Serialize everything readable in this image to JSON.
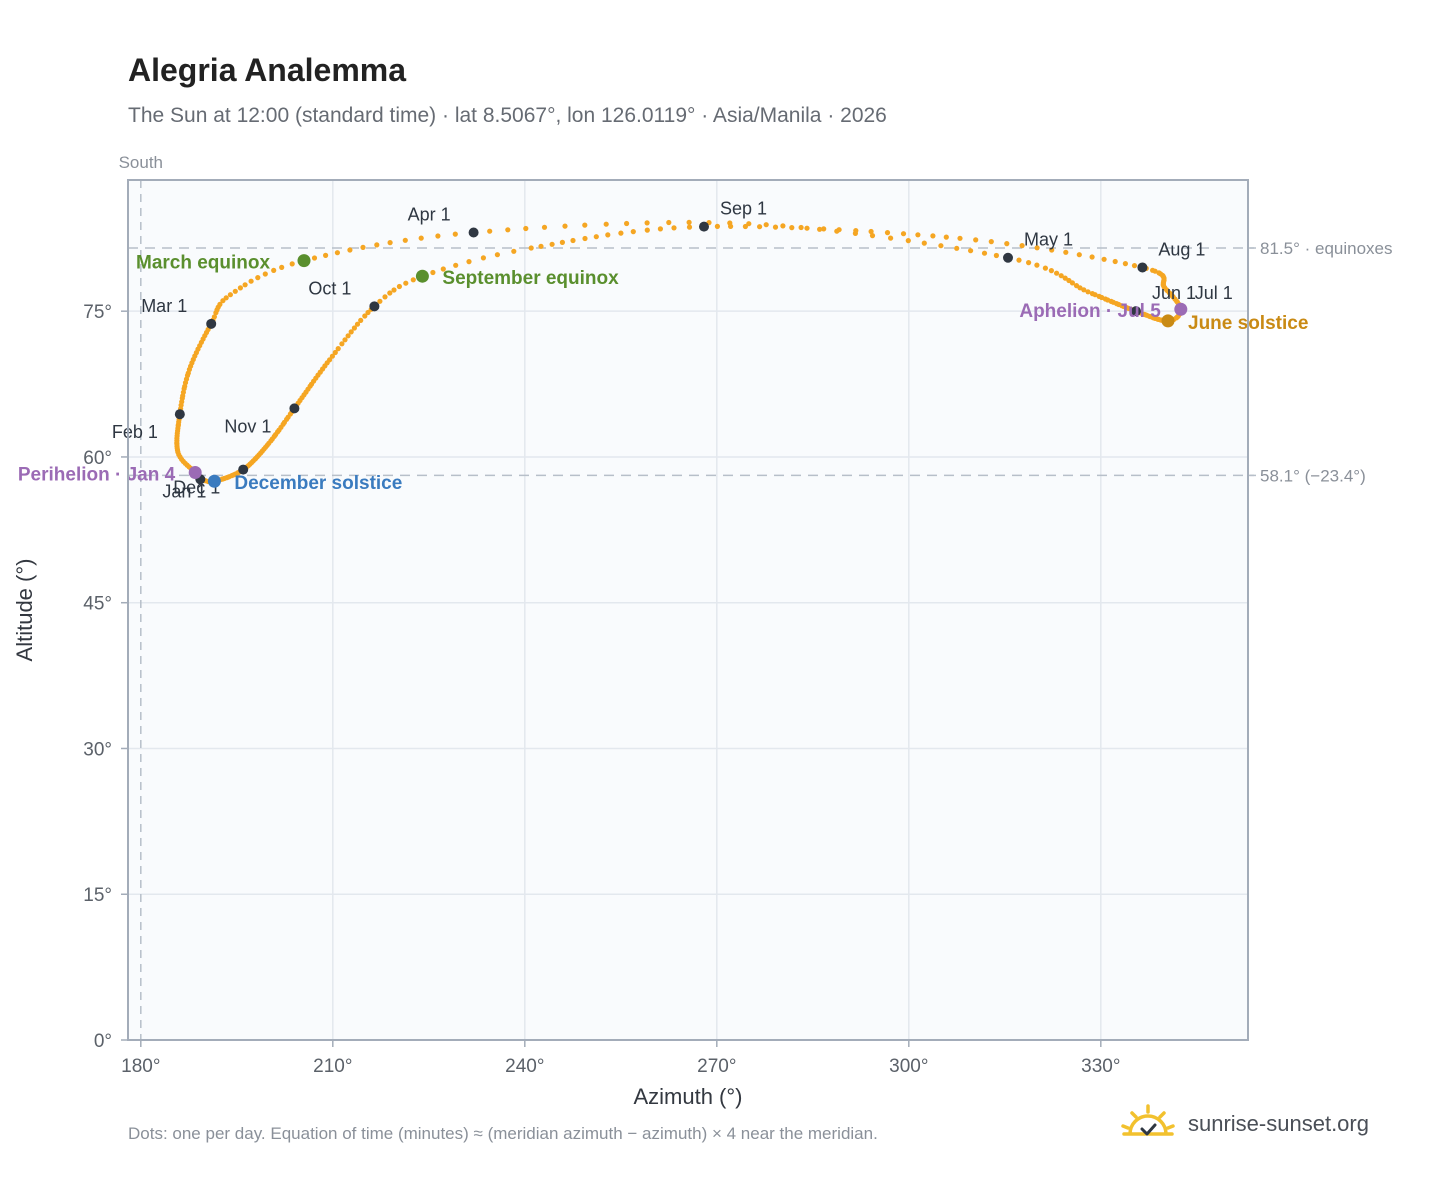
{
  "header": {
    "title": "Alegria Analemma",
    "subtitle": "The Sun at 12:00 (standard time) · lat 8.5067°, lon 126.0119° · Asia/Manila · 2026"
  },
  "footer": {
    "note": "Dots: one per day. Equation of time (minutes) ≈ (meridian azimuth − azimuth) × 4 near the meridian.",
    "brand": "sunrise-sunset.org"
  },
  "colors": {
    "path": "#f5a623",
    "month_marker": "#2f3742",
    "equinox": "#5a8f2e",
    "june_solstice": "#c98a14",
    "december_solstice": "#3a7bbf",
    "perihelion_aphelion": "#9b6bb5",
    "plot_bg": "#f9fbfd",
    "grid": "#e3e8ee",
    "frame": "#a3acb9",
    "ref_line": "#b7bfc9",
    "brand_icon": "#f2c12e"
  },
  "chart_data": {
    "type": "scatter",
    "xlabel": "Azimuth (°)",
    "ylabel": "Altitude (°)",
    "xlim": [
      178,
      353
    ],
    "ylim": [
      0,
      88.5
    ],
    "xticks": [
      180,
      210,
      240,
      270,
      300,
      330
    ],
    "xtick_labels": [
      "180°",
      "210°",
      "240°",
      "270°",
      "300°",
      "330°"
    ],
    "yticks": [
      0,
      15,
      30,
      45,
      60,
      75
    ],
    "ytick_labels": [
      "0°",
      "15°",
      "30°",
      "45°",
      "60°",
      "75°"
    ],
    "grid": true,
    "meridian": {
      "x": 180,
      "label": "South"
    },
    "reference_lines": [
      {
        "y": 81.5,
        "label": "81.5° · equinoxes"
      },
      {
        "y": 58.1,
        "label": "58.1° (−23.4°)"
      }
    ],
    "daily_path": {
      "description": "one dot per day",
      "points": [
        {
          "date": "Jan 1",
          "az": 189.3,
          "alt": 57.7
        },
        {
          "date": "Jan 4",
          "az": 188.5,
          "alt": 58.4
        },
        {
          "date": "Jan 15",
          "az": 185.8,
          "alt": 60.5
        },
        {
          "date": "Feb 1",
          "az": 186.1,
          "alt": 64.4
        },
        {
          "date": "Feb 15",
          "az": 187.6,
          "alt": 69.0
        },
        {
          "date": "Mar 1",
          "az": 191.0,
          "alt": 73.7
        },
        {
          "date": "Mar 10",
          "az": 194.0,
          "alt": 76.7
        },
        {
          "date": "Mar 20",
          "az": 205.5,
          "alt": 80.2
        },
        {
          "date": "Apr 1",
          "az": 232.0,
          "alt": 83.1
        },
        {
          "date": "Apr 15",
          "az": 275.0,
          "alt": 84.0
        },
        {
          "date": "May 1",
          "az": 315.5,
          "alt": 80.5
        },
        {
          "date": "May 15",
          "az": 328.0,
          "alt": 77.0
        },
        {
          "date": "Jun 1",
          "az": 335.5,
          "alt": 75.0
        },
        {
          "date": "Jun 21",
          "az": 340.5,
          "alt": 74.0
        },
        {
          "date": "Jul 1",
          "az": 342.5,
          "alt": 75.2
        },
        {
          "date": "Jul 15",
          "az": 340.0,
          "alt": 77.4
        },
        {
          "date": "Aug 1",
          "az": 336.5,
          "alt": 79.5
        },
        {
          "date": "Aug 15",
          "az": 308.0,
          "alt": 82.5
        },
        {
          "date": "Sep 1",
          "az": 268.0,
          "alt": 83.7
        },
        {
          "date": "Sep 15",
          "az": 241.0,
          "alt": 81.5
        },
        {
          "date": "Sep 23",
          "az": 224.0,
          "alt": 78.6
        },
        {
          "date": "Oct 1",
          "az": 216.5,
          "alt": 75.5
        },
        {
          "date": "Oct 15",
          "az": 209.5,
          "alt": 70.0
        },
        {
          "date": "Nov 1",
          "az": 204.0,
          "alt": 65.0
        },
        {
          "date": "Nov 15",
          "az": 200.0,
          "alt": 61.4
        },
        {
          "date": "Dec 1",
          "az": 196.0,
          "alt": 58.7
        },
        {
          "date": "Dec 21",
          "az": 191.5,
          "alt": 57.5
        },
        {
          "date": "Dec 31",
          "az": 189.5,
          "alt": 57.7
        }
      ]
    },
    "month_markers": [
      {
        "label": "Jan 1",
        "az": 189.3,
        "alt": 57.7
      },
      {
        "label": "Feb 1",
        "az": 186.1,
        "alt": 64.4
      },
      {
        "label": "Mar 1",
        "az": 191.0,
        "alt": 73.7
      },
      {
        "label": "Apr 1",
        "az": 232.0,
        "alt": 83.1
      },
      {
        "label": "May 1",
        "az": 315.5,
        "alt": 80.5
      },
      {
        "label": "Jun 1",
        "az": 335.5,
        "alt": 75.0
      },
      {
        "label": "Jul 1",
        "az": 342.5,
        "alt": 75.2
      },
      {
        "label": "Aug 1",
        "az": 336.5,
        "alt": 79.5
      },
      {
        "label": "Sep 1",
        "az": 268.0,
        "alt": 83.7
      },
      {
        "label": "Oct 1",
        "az": 216.5,
        "alt": 75.5
      },
      {
        "label": "Nov 1",
        "az": 204.0,
        "alt": 65.0
      },
      {
        "label": "Dec 1",
        "az": 196.0,
        "alt": 58.7
      }
    ],
    "special_points": [
      {
        "label": "March equinox",
        "az": 205.5,
        "alt": 80.2,
        "color_key": "equinox"
      },
      {
        "label": "September equinox",
        "az": 224.0,
        "alt": 78.6,
        "color_key": "equinox"
      },
      {
        "label": "June solstice",
        "az": 340.5,
        "alt": 74.0,
        "color_key": "june_solstice"
      },
      {
        "label": "December solstice",
        "az": 191.5,
        "alt": 57.5,
        "color_key": "december_solstice"
      },
      {
        "label": "Perihelion · Jan 4",
        "az": 188.5,
        "alt": 58.4,
        "color_key": "perihelion_aphelion"
      },
      {
        "label": "Aphelion · Jul 5",
        "az": 342.5,
        "alt": 75.2,
        "color_key": "perihelion_aphelion"
      }
    ]
  }
}
